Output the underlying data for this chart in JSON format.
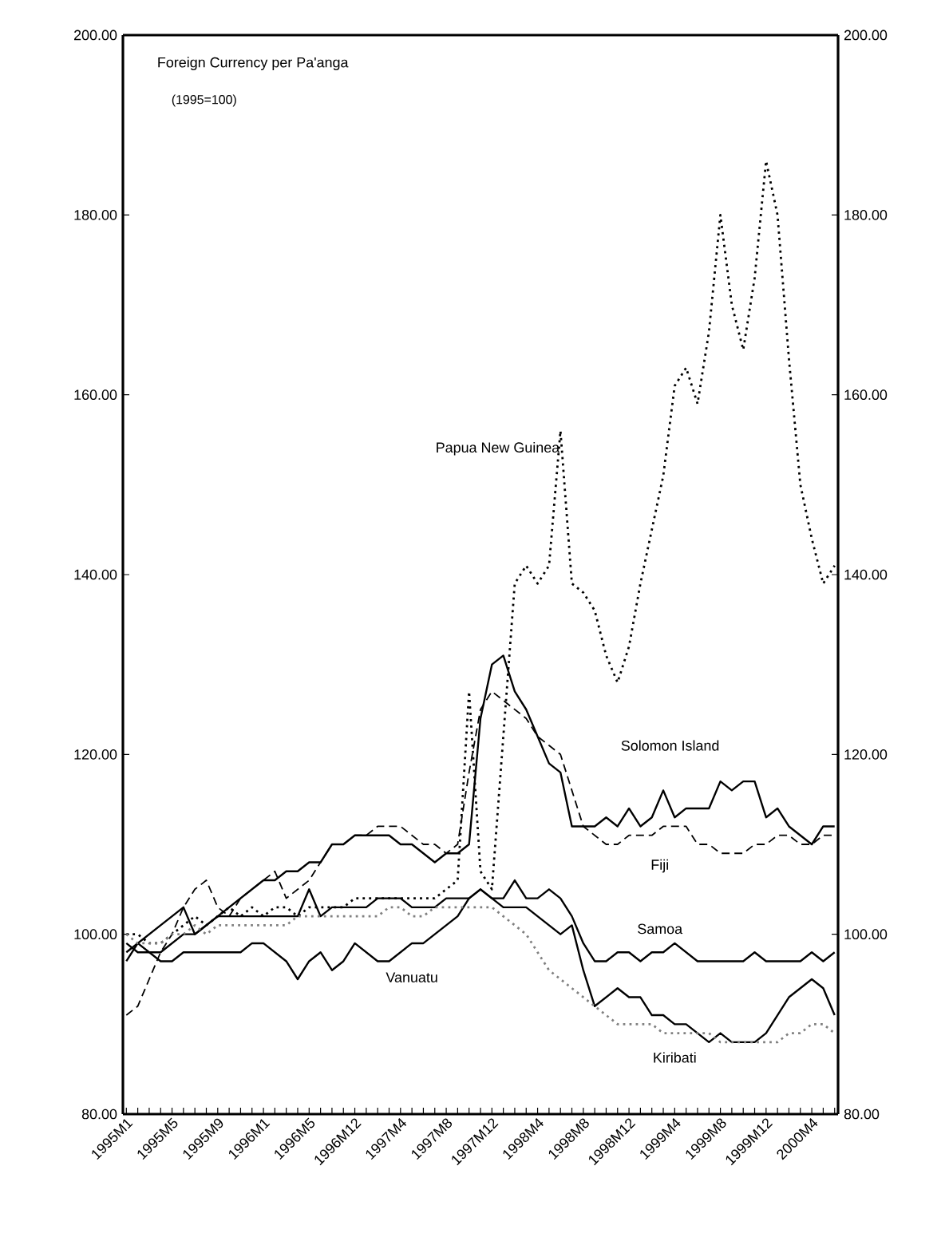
{
  "chart_data": {
    "type": "line",
    "title": "Foreign Currency per Pa'anga",
    "subtitle": "(1995=100)",
    "categories": [
      "1995M1",
      null,
      null,
      null,
      "1995M5",
      null,
      null,
      null,
      "1995M9",
      null,
      null,
      null,
      "1996M1",
      null,
      null,
      null,
      "1996M5",
      null,
      null,
      null,
      "1996M12",
      null,
      null,
      null,
      "1997M4",
      null,
      null,
      null,
      "1997M8",
      null,
      null,
      null,
      "1997M12",
      null,
      null,
      null,
      "1998M4",
      null,
      null,
      null,
      "1998M8",
      null,
      null,
      null,
      "1998M12",
      null,
      null,
      null,
      "1999M4",
      null,
      null,
      null,
      "1999M8",
      null,
      null,
      null,
      "1999M12",
      null,
      null,
      null,
      "2000M4",
      null,
      null
    ],
    "ylim": [
      80,
      200
    ],
    "yticks": [
      {
        "value": 80,
        "label": "80.00"
      },
      {
        "value": 100,
        "label": "100.00"
      },
      {
        "value": 120,
        "label": "120.00"
      },
      {
        "value": 140,
        "label": "140.00"
      },
      {
        "value": 160,
        "label": "160.00"
      },
      {
        "value": 180,
        "label": "180.00"
      },
      {
        "value": 200,
        "label": "200.00"
      }
    ],
    "y2lim": [
      80,
      200
    ],
    "y2ticks": [
      {
        "value": 80,
        "label": "80.00"
      },
      {
        "value": 100,
        "label": "100.00"
      },
      {
        "value": 120,
        "label": "120.00"
      },
      {
        "value": 140,
        "label": "140.00"
      },
      {
        "value": 160,
        "label": "160.00"
      },
      {
        "value": 180,
        "label": "180.00"
      },
      {
        "value": 200,
        "label": "200.00"
      }
    ],
    "series": [
      {
        "name": "Papua New Guinea",
        "color": "#000000",
        "line_style": "dotted",
        "values": [
          100,
          100,
          99,
          99,
          100,
          101,
          102,
          101,
          102,
          103,
          102,
          103,
          102,
          103,
          103,
          102,
          103,
          103,
          103,
          103,
          104,
          104,
          104,
          104,
          104,
          104,
          104,
          104,
          105,
          106,
          127,
          107,
          105,
          122,
          139,
          141,
          139,
          141,
          156,
          139,
          138,
          136,
          131,
          128,
          132,
          139,
          145,
          151,
          161,
          163,
          159,
          167,
          180,
          170,
          165,
          173,
          186,
          180,
          164,
          150,
          144,
          139,
          141
        ]
      },
      {
        "name": "Solomon Island",
        "color": "#000000",
        "line_style": "solid",
        "values": [
          99,
          98,
          98,
          98,
          99,
          100,
          100,
          101,
          102,
          103,
          104,
          105,
          106,
          106,
          107,
          107,
          108,
          108,
          110,
          110,
          111,
          111,
          111,
          111,
          110,
          110,
          109,
          108,
          109,
          109,
          110,
          124,
          130,
          131,
          127,
          125,
          122,
          119,
          118,
          112,
          112,
          112,
          113,
          112,
          114,
          112,
          113,
          116,
          113,
          114,
          114,
          114,
          117,
          116,
          117,
          117,
          113,
          114,
          112,
          111,
          110,
          112,
          112
        ]
      },
      {
        "name": "Fiji",
        "color": "#000000",
        "line_style": "dashed",
        "values": [
          91,
          92,
          95,
          98,
          100,
          103,
          105,
          106,
          103,
          102,
          104,
          105,
          106,
          107,
          104,
          105,
          106,
          108,
          110,
          110,
          111,
          111,
          112,
          112,
          112,
          111,
          110,
          110,
          109,
          110,
          118,
          125,
          127,
          126,
          125,
          124,
          122,
          121,
          120,
          116,
          112,
          111,
          110,
          110,
          111,
          111,
          111,
          112,
          112,
          112,
          110,
          110,
          109,
          109,
          109,
          110,
          110,
          111,
          111,
          110,
          110,
          111,
          111
        ]
      },
      {
        "name": "Samoa",
        "color": "#000000",
        "line_style": "solid",
        "values": [
          98,
          99,
          100,
          101,
          102,
          103,
          100,
          101,
          102,
          102,
          102,
          102,
          102,
          102,
          102,
          102,
          105,
          102,
          103,
          103,
          103,
          103,
          104,
          104,
          104,
          103,
          103,
          103,
          104,
          104,
          104,
          105,
          104,
          104,
          106,
          104,
          104,
          105,
          104,
          102,
          99,
          97,
          97,
          98,
          98,
          97,
          98,
          98,
          99,
          98,
          97,
          97,
          97,
          97,
          97,
          98,
          97,
          97,
          97,
          97,
          98,
          97,
          98
        ]
      },
      {
        "name": "Vanuatu",
        "color": "#000000",
        "line_style": "solid",
        "values": [
          97,
          99,
          98,
          97,
          97,
          98,
          98,
          98,
          98,
          98,
          98,
          99,
          99,
          98,
          97,
          95,
          97,
          98,
          96,
          97,
          99,
          98,
          97,
          97,
          98,
          99,
          99,
          100,
          101,
          102,
          104,
          105,
          104,
          103,
          103,
          103,
          102,
          101,
          100,
          101,
          96,
          92,
          93,
          94,
          93,
          93,
          91,
          91,
          90,
          90,
          89,
          88,
          89,
          88,
          88,
          88,
          89,
          91,
          93,
          94,
          95,
          94,
          91
        ]
      },
      {
        "name": "Kiribati",
        "color": "#808080",
        "line_style": "dotted",
        "values": [
          100,
          99,
          99,
          99,
          100,
          100,
          101,
          100,
          101,
          101,
          101,
          101,
          101,
          101,
          101,
          102,
          102,
          102,
          102,
          102,
          102,
          102,
          102,
          103,
          103,
          102,
          102,
          103,
          103,
          103,
          103,
          103,
          103,
          102,
          101,
          100,
          98,
          96,
          95,
          94,
          93,
          92,
          91,
          90,
          90,
          90,
          90,
          89,
          89,
          89,
          89,
          89,
          88,
          88,
          88,
          88,
          88,
          88,
          89,
          89,
          90,
          90,
          89
        ]
      }
    ]
  }
}
